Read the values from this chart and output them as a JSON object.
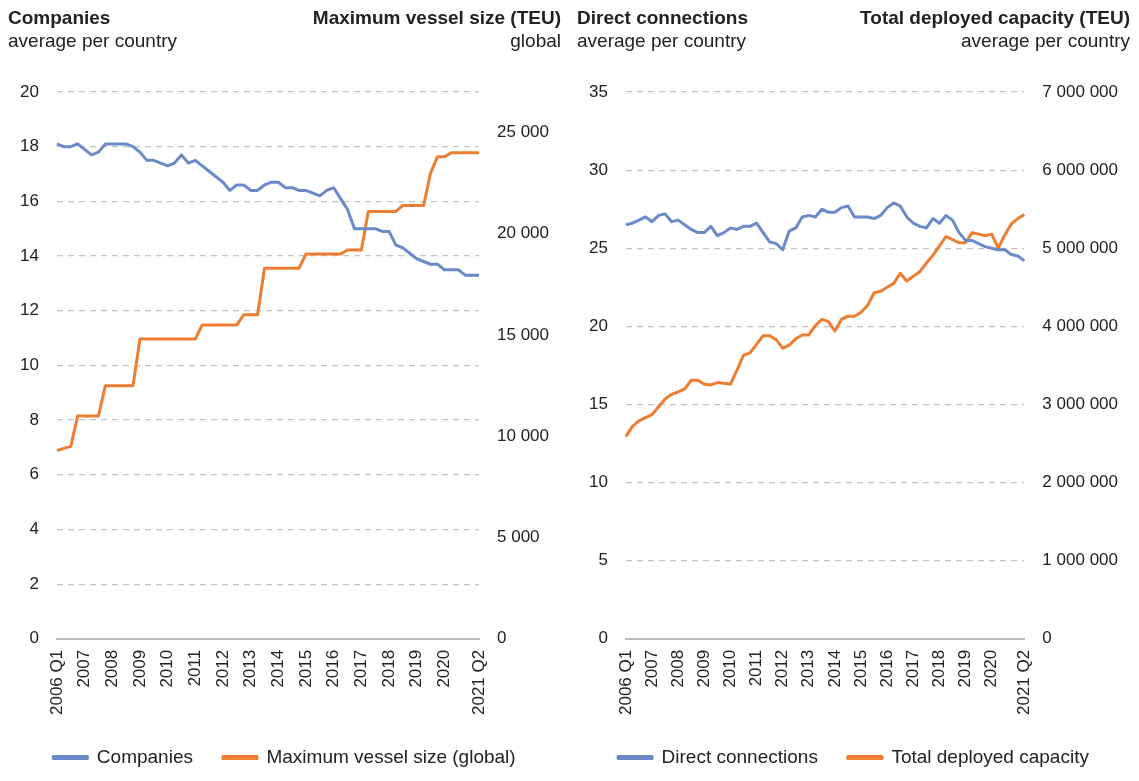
{
  "chart_data": [
    {
      "type": "line",
      "ylabel": "Companies\naverage per country",
      "y2label": "Maximum vessel size (TEU)\nglobal",
      "categories": [
        "2006 Q1",
        null,
        null,
        null,
        "2007",
        null,
        null,
        null,
        "2008",
        null,
        null,
        null,
        "2009",
        null,
        null,
        null,
        "2010",
        null,
        null,
        null,
        "2011",
        null,
        null,
        null,
        "2012",
        null,
        null,
        null,
        "2013",
        null,
        null,
        null,
        "2014",
        null,
        null,
        null,
        "2015",
        null,
        null,
        null,
        "2016",
        null,
        null,
        null,
        "2017",
        null,
        null,
        null,
        "2018",
        null,
        null,
        null,
        "2019",
        null,
        null,
        null,
        "2020",
        null,
        null,
        null,
        null,
        "2021 Q2"
      ],
      "series": [
        {
          "name": "Companies",
          "color": "#6a8bc8",
          "values": [
            18.1,
            18.0,
            18.0,
            18.1,
            17.9,
            17.7,
            17.8,
            18.1,
            18.1,
            18.1,
            18.1,
            18.0,
            17.8,
            17.5,
            17.5,
            17.4,
            17.3,
            17.4,
            17.7,
            17.4,
            17.5,
            17.3,
            17.1,
            16.9,
            16.7,
            16.4,
            16.6,
            16.6,
            16.4,
            16.4,
            16.6,
            16.7,
            16.7,
            16.5,
            16.5,
            16.4,
            16.4,
            16.3,
            16.2,
            16.4,
            16.5,
            16.1,
            15.7,
            15.0,
            15.0,
            15.0,
            15.0,
            14.9,
            14.9,
            14.4,
            14.3,
            14.1,
            13.9,
            13.8,
            13.7,
            13.7,
            13.5,
            13.5,
            13.5,
            13.3,
            13.3,
            13.3
          ]
        },
        {
          "name": "Maximum vessel size (global)",
          "color": "#ed7d31",
          "axis": "y2",
          "values": [
            9300,
            9400,
            9500,
            11000,
            11000,
            11000,
            11000,
            12500,
            12500,
            12500,
            12500,
            12500,
            14800,
            14800,
            14800,
            14800,
            14800,
            14800,
            14800,
            14800,
            14800,
            15500,
            15500,
            15500,
            15500,
            15500,
            15500,
            16000,
            16000,
            16000,
            18300,
            18300,
            18300,
            18300,
            18300,
            18300,
            19000,
            19000,
            19000,
            19000,
            19000,
            19000,
            19200,
            19200,
            19200,
            21100,
            21100,
            21100,
            21100,
            21100,
            21400,
            21400,
            21400,
            21400,
            23000,
            23800,
            23800,
            24000,
            24000,
            24000,
            24000,
            24000
          ]
        }
      ],
      "ylim": [
        0,
        20
      ],
      "yticks": [
        0,
        2,
        4,
        6,
        8,
        10,
        12,
        14,
        16,
        18,
        20
      ],
      "y2lim": [
        0,
        27000
      ],
      "y2ticks": [
        0,
        {
          "value": 5000,
          "label": "5 000"
        },
        {
          "value": 10000,
          "label": "10 000"
        },
        {
          "value": 15000,
          "label": "15 000"
        },
        {
          "value": 20000,
          "label": "20 000"
        },
        {
          "value": 25000,
          "label": "25 000"
        }
      ],
      "grid": "y",
      "legend": "bottom",
      "line_style": "solid"
    },
    {
      "type": "line",
      "ylabel": "Direct connections\naverage per country",
      "y2label": "Total deployed capacity (TEU)\naverage per country",
      "categories": [
        "2006 Q1",
        null,
        null,
        null,
        "2007",
        null,
        null,
        null,
        "2008",
        null,
        null,
        null,
        "2009",
        null,
        null,
        null,
        "2010",
        null,
        null,
        null,
        "2011",
        null,
        null,
        null,
        "2012",
        null,
        null,
        null,
        "2013",
        null,
        null,
        null,
        "2014",
        null,
        null,
        null,
        "2015",
        null,
        null,
        null,
        "2016",
        null,
        null,
        null,
        "2017",
        null,
        null,
        null,
        "2018",
        null,
        null,
        null,
        "2019",
        null,
        null,
        null,
        "2020",
        null,
        null,
        null,
        null,
        "2021 Q2"
      ],
      "series": [
        {
          "name": "Direct connections",
          "color": "#6a8bc8",
          "values": [
            26.5,
            26.6,
            26.8,
            27.0,
            26.7,
            27.1,
            27.2,
            26.7,
            26.8,
            26.5,
            26.2,
            26.0,
            26.0,
            26.4,
            25.8,
            26.0,
            26.3,
            26.2,
            26.4,
            26.4,
            26.6,
            26.0,
            25.4,
            25.3,
            24.9,
            26.1,
            26.3,
            27.0,
            27.1,
            27.0,
            27.5,
            27.3,
            27.3,
            27.6,
            27.7,
            27.0,
            27.0,
            27.0,
            26.9,
            27.1,
            27.6,
            27.9,
            27.7,
            27.0,
            26.6,
            26.4,
            26.3,
            26.9,
            26.6,
            27.1,
            26.8,
            26.0,
            25.5,
            25.5,
            25.3,
            25.1,
            25.0,
            24.9,
            24.9,
            24.6,
            24.5,
            24.2
          ]
        },
        {
          "name": "Total deployed capacity",
          "color": "#ed7d31",
          "axis": "y2",
          "values": [
            2590000,
            2720000,
            2790000,
            2830000,
            2870000,
            2970000,
            3070000,
            3130000,
            3160000,
            3200000,
            3310000,
            3310000,
            3260000,
            3250000,
            3280000,
            3270000,
            3260000,
            3440000,
            3630000,
            3660000,
            3770000,
            3880000,
            3880000,
            3830000,
            3720000,
            3760000,
            3840000,
            3890000,
            3890000,
            4010000,
            4090000,
            4060000,
            3940000,
            4090000,
            4130000,
            4130000,
            4180000,
            4270000,
            4430000,
            4450000,
            4500000,
            4550000,
            4680000,
            4580000,
            4640000,
            4700000,
            4810000,
            4910000,
            5030000,
            5150000,
            5110000,
            5070000,
            5070000,
            5200000,
            5180000,
            5160000,
            5180000,
            5000000,
            5170000,
            5310000,
            5380000,
            5430000
          ]
        }
      ],
      "ylim": [
        0,
        35
      ],
      "yticks": [
        0,
        5,
        10,
        15,
        20,
        25,
        30,
        35
      ],
      "y2lim": [
        0,
        7000000
      ],
      "y2ticks": [
        0,
        {
          "value": 1000000,
          "label": "1 000 000"
        },
        {
          "value": 2000000,
          "label": "2 000 000"
        },
        {
          "value": 3000000,
          "label": "3 000 000"
        },
        {
          "value": 4000000,
          "label": "4 000 000"
        },
        {
          "value": 5000000,
          "label": "5 000 000"
        },
        {
          "value": 6000000,
          "label": "6 000 000"
        },
        {
          "value": 7000000,
          "label": "7 000 000"
        }
      ],
      "grid": "y",
      "legend": "bottom",
      "line_style": "solid"
    }
  ]
}
